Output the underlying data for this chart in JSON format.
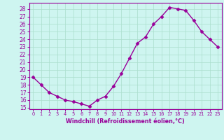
{
  "x": [
    0,
    1,
    2,
    3,
    4,
    5,
    6,
    7,
    8,
    9,
    10,
    11,
    12,
    13,
    14,
    15,
    16,
    17,
    18,
    19,
    20,
    21,
    22,
    23
  ],
  "y": [
    19.0,
    18.0,
    17.0,
    16.5,
    16.0,
    15.8,
    15.5,
    15.2,
    16.0,
    16.5,
    17.8,
    19.5,
    21.5,
    23.5,
    24.3,
    26.0,
    27.0,
    28.2,
    28.0,
    27.8,
    26.5,
    25.0,
    24.0,
    23.0
  ],
  "line_color": "#990099",
  "marker": "D",
  "markersize": 2.5,
  "linewidth": 1.0,
  "xlabel": "Windchill (Refroidissement éolien,°C)",
  "ylabel": "",
  "xlim": [
    -0.5,
    23.5
  ],
  "ylim": [
    14.8,
    28.8
  ],
  "yticks": [
    15,
    16,
    17,
    18,
    19,
    20,
    21,
    22,
    23,
    24,
    25,
    26,
    27,
    28
  ],
  "xticks": [
    0,
    1,
    2,
    3,
    4,
    5,
    6,
    7,
    8,
    9,
    10,
    11,
    12,
    13,
    14,
    15,
    16,
    17,
    18,
    19,
    20,
    21,
    22,
    23
  ],
  "bg_color": "#cef5f0",
  "grid_color": "#aaddcc",
  "line_border_color": "#888888",
  "tick_color": "#990099",
  "label_color": "#990099",
  "spine_color": "#990099",
  "xlabel_fontsize": 5.8,
  "xlabel_fontweight": "bold",
  "ytick_fontsize": 5.5,
  "xtick_fontsize": 4.8
}
